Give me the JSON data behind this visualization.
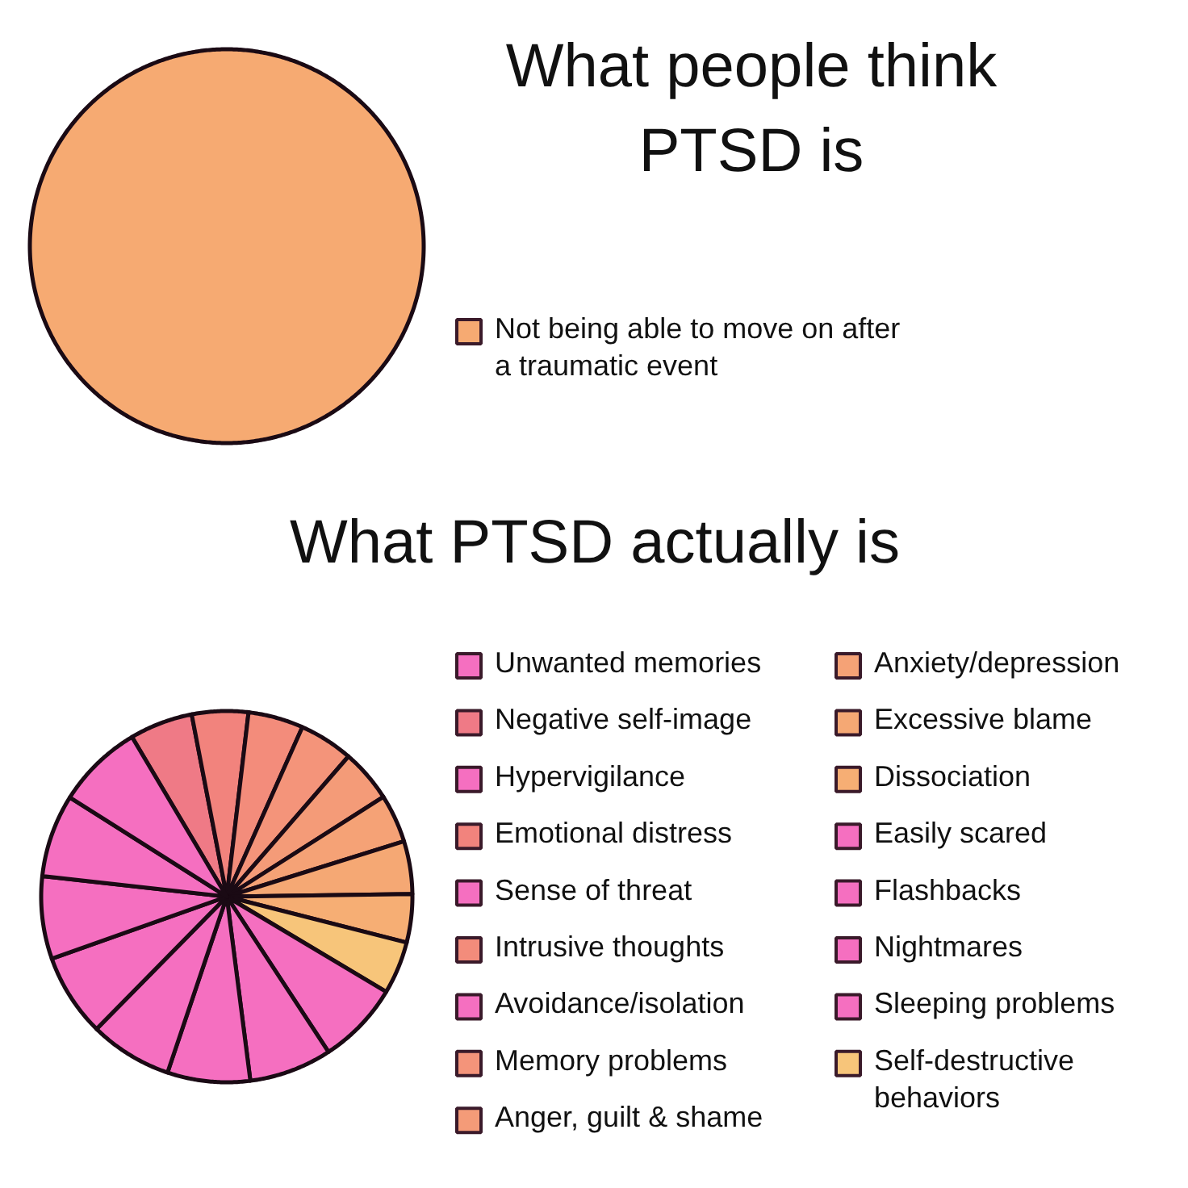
{
  "chart_data": [
    {
      "type": "pie",
      "title": "What people think PTSD is",
      "categories": [
        "Not being able to move on after a traumatic event"
      ],
      "values": [
        100
      ],
      "colors": [
        "#f6aa72"
      ],
      "legend": "right"
    },
    {
      "type": "pie",
      "title": "What PTSD actually is",
      "categories": [
        "Negative self-image",
        "Emotional distress",
        "Intrusive thoughts",
        "Memory problems",
        "Anger, guilt & shame",
        "Anxiety/depression",
        "Excessive blame",
        "Dissociation",
        "Self-destructive behaviors",
        "Unwanted memories",
        "Hypervigilance",
        "Sense of threat",
        "Avoidance/isolation",
        "Easily scared",
        "Flashbacks",
        "Nightmares",
        "Sleeping problems"
      ],
      "values": [
        5.5,
        4.9,
        4.8,
        4.7,
        4.6,
        4.2,
        4.6,
        4.2,
        4.6,
        7.2,
        7.2,
        7.2,
        7.2,
        7.2,
        7.2,
        7.2,
        7.5
      ],
      "colors": [
        "#ef7a86",
        "#f2837d",
        "#f38c7b",
        "#f4947a",
        "#f49b78",
        "#f5a276",
        "#f5a874",
        "#f6ae74",
        "#f7c57a",
        "#f56fc0",
        "#f56fc0",
        "#f56fc0",
        "#f56fc0",
        "#f56fc0",
        "#f56fc0",
        "#f56fc0",
        "#f56fc0"
      ],
      "legend": "right"
    }
  ]
}
